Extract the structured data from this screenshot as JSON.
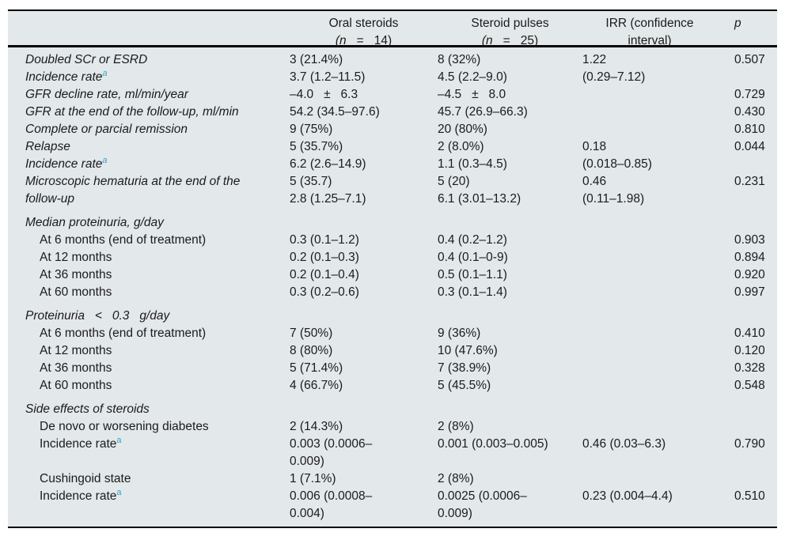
{
  "table": {
    "header": {
      "oral": {
        "title": "Oral steroids",
        "sub_open": "(n",
        "sub_eq": "=",
        "sub_val": "14)"
      },
      "pulses": {
        "title": "Steroid pulses",
        "sub_open": "(n",
        "sub_eq": "=",
        "sub_val": "25)"
      },
      "irr": {
        "title": "IRR (confidence interval)"
      },
      "p": {
        "title": "p"
      }
    },
    "footnote_marker": "a",
    "accent_color": "#3d9dd1",
    "rows": [
      {
        "label": "Doubled SCr or ESRD",
        "italic": true,
        "oral": "3 (21.4%)",
        "pulses": "8 (32%)",
        "irr": "1.22",
        "p": "0.507"
      },
      {
        "label": "Incidence rate",
        "sup": true,
        "italic": true,
        "oral": "3.7 (1.2–11.5)",
        "pulses": "4.5 (2.2–9.0)",
        "irr": "(0.29–7.12)",
        "p": ""
      },
      {
        "label": "GFR decline rate, ml/min/year",
        "italic": true,
        "oral": "–4.0   ±   6.3",
        "pulses": "–4.5   ±   8.0",
        "irr": "",
        "p": "0.729"
      },
      {
        "label": "GFR at the end of the follow-up, ml/min",
        "italic": true,
        "oral": "54.2 (34.5–97.6)",
        "pulses": "45.7 (26.9–66.3)",
        "irr": "",
        "p": "0.430"
      },
      {
        "label": "Complete or parcial remission",
        "italic": true,
        "oral": "9 (75%)",
        "pulses": "20 (80%)",
        "irr": "",
        "p": "0.810"
      },
      {
        "label": "Relapse",
        "italic": true,
        "oral": "5 (35.7%)",
        "pulses": "2 (8.0%)",
        "irr": "0.18",
        "p": "0.044"
      },
      {
        "label": "Incidence rate",
        "sup": true,
        "italic": true,
        "oral": "6.2 (2.6–14.9)",
        "pulses": "1.1 (0.3–4.5)",
        "irr": "(0.018–0.85)",
        "p": ""
      },
      {
        "label": "Microscopic hematuria at the end of the\nfollow-up",
        "italic": true,
        "oral": "5 (35.7)\n2.8 (1.25–7.1)",
        "pulses": "5 (20)\n6.1 (3.01–13.2)",
        "irr": "0.46\n(0.11–1.98)",
        "p": "0.231"
      },
      {
        "label": "Median proteinuria, g/day",
        "italic": true,
        "section": true,
        "oral": "",
        "pulses": "",
        "irr": "",
        "p": ""
      },
      {
        "label": "At 6 months (end of treatment)",
        "indent": true,
        "oral": "0.3 (0.1–1.2)",
        "pulses": "0.4 (0.2–1.2)",
        "irr": "",
        "p": "0.903"
      },
      {
        "label": "At 12 months",
        "indent": true,
        "oral": "0.2 (0.1–0.3)",
        "pulses": "0.4 (0.1–0-9)",
        "irr": "",
        "p": "0.894"
      },
      {
        "label": "At 36 months",
        "indent": true,
        "oral": "0.2 (0.1–0.4)",
        "pulses": "0.5 (0.1–1.1)",
        "irr": "",
        "p": "0.920"
      },
      {
        "label": "At 60 months",
        "indent": true,
        "oral": "0.3 (0.2–0.6)",
        "pulses": "0.3 (0.1–1.4)",
        "irr": "",
        "p": "0.997"
      },
      {
        "label": "Proteinuria   <   0.3   g/day",
        "italic": true,
        "section": true,
        "oral": "",
        "pulses": "",
        "irr": "",
        "p": ""
      },
      {
        "label": "At 6 months (end of treatment)",
        "indent": true,
        "oral": "7 (50%)",
        "pulses": "9 (36%)",
        "irr": "",
        "p": "0.410"
      },
      {
        "label": "At 12 months",
        "indent": true,
        "oral": "8 (80%)",
        "pulses": "10 (47.6%)",
        "irr": "",
        "p": "0.120"
      },
      {
        "label": "At 36 months",
        "indent": true,
        "oral": "5 (71.4%)",
        "pulses": "7 (38.9%)",
        "irr": "",
        "p": "0.328"
      },
      {
        "label": "At 60 months",
        "indent": true,
        "oral": "4 (66.7%)",
        "pulses": "5 (45.5%)",
        "irr": "",
        "p": "0.548"
      },
      {
        "label": "Side effects of steroids",
        "italic": true,
        "section": true,
        "oral": "",
        "pulses": "",
        "irr": "",
        "p": ""
      },
      {
        "label": "De novo or worsening diabetes",
        "indent": true,
        "oral": "2 (14.3%)",
        "pulses": "2 (8%)",
        "irr": "",
        "p": ""
      },
      {
        "label": "Incidence rate",
        "sup": true,
        "indent": true,
        "oral": "0.003 (0.0006–\n0.009)",
        "pulses": "0.001 (0.003–0.005)",
        "irr": "0.46 (0.03–6.3)",
        "p": "0.790"
      },
      {
        "label": "Cushingoid state",
        "indent": true,
        "oral": "1 (7.1%)",
        "pulses": "2 (8%)",
        "irr": "",
        "p": ""
      },
      {
        "label": "Incidence rate",
        "sup": true,
        "indent": true,
        "oral": "0.006 (0.0008–\n0.004)",
        "pulses": "0.0025 (0.0006–\n0.009)",
        "irr": "0.23 (0.004–4.4)",
        "p": "0.510"
      }
    ]
  }
}
